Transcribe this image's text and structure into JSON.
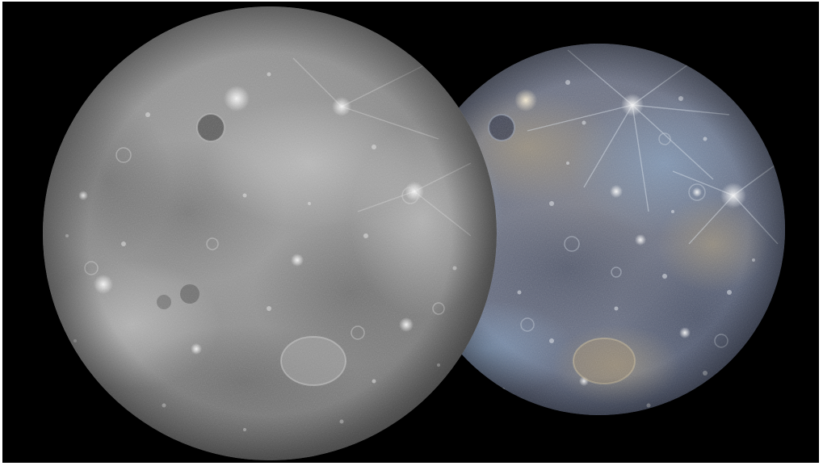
{
  "image": {
    "background_color": "#000000",
    "left_planet": {
      "rendering": "grayscale",
      "base_color": "#8e8e8e",
      "highlight_color": "#d8d8d8",
      "shadow_color": "#5c5c5c"
    },
    "right_planet": {
      "rendering": "enhanced-color",
      "base_color": "#6d7385",
      "highlight_color": "#e9dfc8",
      "blue_tint": "#5f7fa8",
      "tan_tint": "#a08f6a"
    }
  }
}
